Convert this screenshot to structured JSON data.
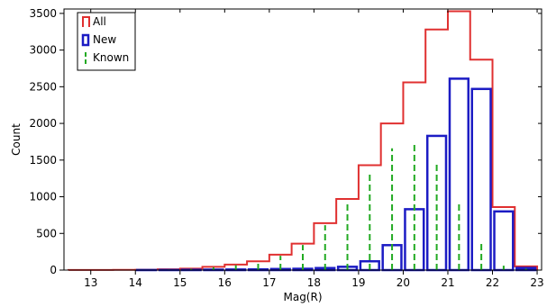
{
  "chart_data": {
    "type": "bar",
    "subtype": "histogram",
    "xlabel": "Mag(R)",
    "ylabel": "Count",
    "xlim": [
      12.4,
      23.1
    ],
    "ylim": [
      0,
      3560
    ],
    "xticks": [
      13,
      14,
      15,
      16,
      17,
      18,
      19,
      20,
      21,
      22,
      23
    ],
    "yticks": [
      0,
      500,
      1000,
      1500,
      2000,
      2500,
      3000,
      3500
    ],
    "legend_position": "top-left",
    "bin_edges": [
      12.5,
      13.0,
      13.5,
      14.0,
      14.5,
      15.0,
      15.5,
      16.0,
      16.5,
      17.0,
      17.5,
      18.0,
      18.5,
      19.0,
      19.5,
      20.0,
      20.5,
      21.0,
      21.5,
      22.0,
      22.5,
      23.0
    ],
    "series": [
      {
        "name": "All",
        "style": "step",
        "color": "#e03030",
        "values": [
          2,
          2,
          3,
          5,
          10,
          20,
          45,
          75,
          120,
          210,
          360,
          640,
          970,
          1430,
          2000,
          2560,
          3280,
          3530,
          2870,
          860,
          50
        ]
      },
      {
        "name": "New",
        "style": "outlined-bar",
        "color": "#1c1cc4",
        "values": [
          0,
          0,
          0,
          1,
          2,
          4,
          6,
          8,
          10,
          15,
          18,
          28,
          45,
          120,
          340,
          830,
          1830,
          2610,
          2470,
          800,
          30
        ]
      },
      {
        "name": "Known",
        "style": "dashed-line",
        "color": "#22aa22",
        "values": [
          2,
          2,
          3,
          4,
          8,
          16,
          39,
          67,
          110,
          195,
          342,
          612,
          925,
          1310,
          1660,
          1730,
          1450,
          920,
          400,
          60,
          20
        ]
      }
    ]
  }
}
